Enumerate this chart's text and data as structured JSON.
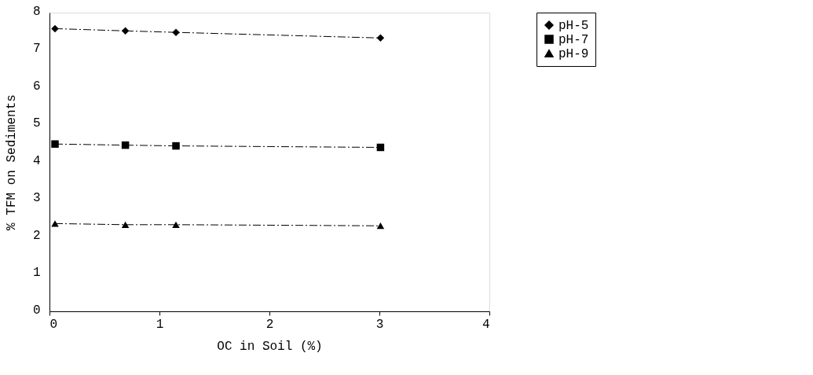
{
  "chart_data": {
    "type": "line",
    "xlabel": "OC in Soil (%)",
    "ylabel": "% TFM on Sediments",
    "x": [
      0.05,
      0.69,
      1.15,
      3.01
    ],
    "series": [
      {
        "name": "pH-5",
        "color": "#000000",
        "marker": "diamond",
        "values": [
          7.57,
          7.51,
          7.47,
          7.32
        ]
      },
      {
        "name": "pH-7",
        "color": "#000000",
        "marker": "square",
        "values": [
          4.48,
          4.45,
          4.43,
          4.39
        ]
      },
      {
        "name": "pH-9",
        "color": "#000000",
        "marker": "triangle",
        "values": [
          2.35,
          2.32,
          2.32,
          2.29
        ]
      }
    ],
    "xlim": [
      0,
      4
    ],
    "xticks": [
      0,
      1,
      2,
      3,
      4
    ],
    "ylim": [
      0,
      8
    ],
    "yticks": [
      0,
      1,
      2,
      3,
      4,
      5,
      6,
      7,
      8
    ],
    "grid": false,
    "legend": "right",
    "line_style": "dashed"
  }
}
